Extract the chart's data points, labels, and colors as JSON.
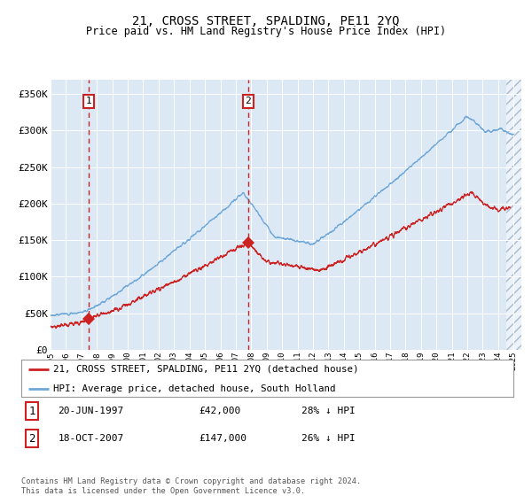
{
  "title": "21, CROSS STREET, SPALDING, PE11 2YQ",
  "subtitle": "Price paid vs. HM Land Registry's House Price Index (HPI)",
  "ylabel_ticks": [
    "£0",
    "£50K",
    "£100K",
    "£150K",
    "£200K",
    "£250K",
    "£300K",
    "£350K"
  ],
  "ytick_values": [
    0,
    50000,
    100000,
    150000,
    200000,
    250000,
    300000,
    350000
  ],
  "ylim": [
    0,
    370000
  ],
  "xlim_start": 1995.0,
  "xlim_end": 2025.5,
  "bg_color": "#dce9f5",
  "grid_color": "#ffffff",
  "hpi_color": "#6fa8d8",
  "price_color": "#cc2222",
  "sale1_year": 1997.47,
  "sale1_price": 42000,
  "sale2_year": 2007.79,
  "sale2_price": 147000,
  "legend_label_red": "21, CROSS STREET, SPALDING, PE11 2YQ (detached house)",
  "legend_label_blue": "HPI: Average price, detached house, South Holland",
  "footnote": "Contains HM Land Registry data © Crown copyright and database right 2024.\nThis data is licensed under the Open Government Licence v3.0."
}
